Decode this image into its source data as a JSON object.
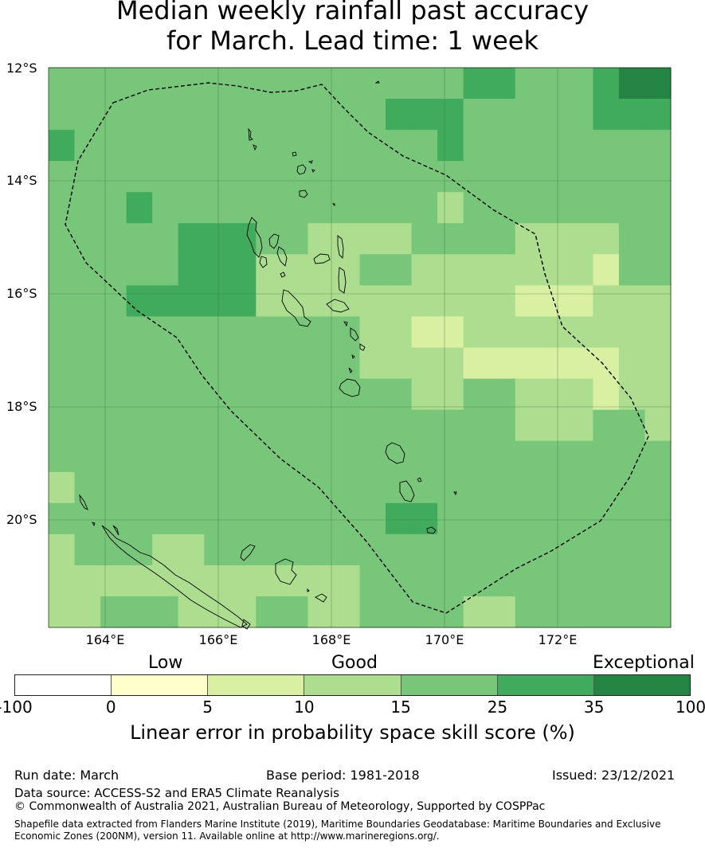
{
  "title": {
    "line1": "Median weekly rainfall past accuracy",
    "line2": "for March. Lead time: 1 week"
  },
  "map": {
    "lat_labels": [
      "12°S",
      "14°S",
      "16°S",
      "18°S",
      "20°S"
    ],
    "lon_labels": [
      "164°E",
      "166°E",
      "168°E",
      "170°E",
      "172°E"
    ],
    "lon_range": [
      163.0,
      174.0
    ],
    "lat_range": [
      -21.9,
      -12.0
    ],
    "grid_cell_size_deg": 0.84,
    "grid_levels_legend": "0=0-5,1=5-10,2=10-15,3=15-25,4=25-35,5=35-100",
    "grid": [
      [
        3,
        3,
        3,
        3,
        3,
        3,
        3,
        3,
        3,
        3,
        3,
        3,
        3,
        3,
        3,
        3,
        4,
        4,
        3,
        3,
        3,
        4,
        5,
        5
      ],
      [
        3,
        3,
        3,
        3,
        3,
        3,
        3,
        3,
        3,
        3,
        3,
        3,
        3,
        4,
        4,
        4,
        3,
        3,
        3,
        3,
        3,
        4,
        4,
        4
      ],
      [
        4,
        3,
        3,
        3,
        3,
        3,
        3,
        3,
        3,
        3,
        3,
        3,
        3,
        3,
        3,
        4,
        3,
        3,
        3,
        3,
        3,
        3,
        3,
        3
      ],
      [
        3,
        3,
        3,
        3,
        3,
        3,
        3,
        3,
        3,
        3,
        3,
        3,
        3,
        3,
        3,
        3,
        3,
        3,
        3,
        3,
        3,
        3,
        3,
        3
      ],
      [
        3,
        3,
        3,
        4,
        3,
        3,
        3,
        3,
        3,
        3,
        3,
        3,
        3,
        3,
        3,
        2,
        3,
        3,
        3,
        3,
        3,
        3,
        3,
        3
      ],
      [
        3,
        3,
        3,
        3,
        3,
        4,
        4,
        4,
        3,
        3,
        2,
        2,
        2,
        2,
        3,
        3,
        3,
        3,
        2,
        2,
        2,
        2,
        3,
        3
      ],
      [
        3,
        3,
        3,
        3,
        3,
        4,
        4,
        4,
        2,
        2,
        2,
        2,
        3,
        3,
        2,
        2,
        2,
        2,
        2,
        2,
        2,
        1,
        3,
        3
      ],
      [
        3,
        3,
        3,
        4,
        4,
        4,
        4,
        4,
        2,
        2,
        2,
        2,
        2,
        2,
        2,
        2,
        2,
        2,
        1,
        1,
        1,
        2,
        2,
        2
      ],
      [
        3,
        3,
        3,
        3,
        3,
        3,
        3,
        3,
        3,
        3,
        3,
        3,
        2,
        2,
        1,
        1,
        2,
        2,
        2,
        2,
        2,
        2,
        2,
        2
      ],
      [
        3,
        3,
        3,
        3,
        3,
        3,
        3,
        3,
        3,
        3,
        3,
        3,
        2,
        2,
        2,
        2,
        1,
        1,
        1,
        1,
        1,
        1,
        2,
        2
      ],
      [
        3,
        3,
        3,
        3,
        3,
        3,
        3,
        3,
        3,
        3,
        3,
        3,
        3,
        3,
        2,
        2,
        3,
        3,
        2,
        2,
        2,
        1,
        2,
        2
      ],
      [
        3,
        3,
        3,
        3,
        3,
        3,
        3,
        3,
        3,
        3,
        3,
        3,
        3,
        3,
        3,
        3,
        3,
        3,
        2,
        2,
        2,
        3,
        3,
        2
      ],
      [
        3,
        3,
        3,
        3,
        3,
        3,
        3,
        3,
        3,
        3,
        3,
        3,
        3,
        3,
        3,
        3,
        3,
        3,
        3,
        3,
        3,
        3,
        3,
        3
      ],
      [
        2,
        3,
        3,
        3,
        3,
        3,
        3,
        3,
        3,
        3,
        3,
        3,
        3,
        3,
        3,
        3,
        3,
        3,
        3,
        3,
        3,
        3,
        3,
        3
      ],
      [
        3,
        3,
        3,
        3,
        3,
        3,
        3,
        3,
        3,
        3,
        3,
        3,
        3,
        4,
        4,
        3,
        3,
        3,
        3,
        3,
        3,
        3,
        3,
        3
      ],
      [
        2,
        3,
        3,
        3,
        2,
        2,
        3,
        3,
        3,
        3,
        3,
        3,
        3,
        3,
        3,
        3,
        3,
        3,
        3,
        3,
        3,
        3,
        3,
        3
      ],
      [
        2,
        2,
        2,
        2,
        2,
        2,
        2,
        2,
        2,
        2,
        2,
        2,
        3,
        3,
        3,
        3,
        3,
        3,
        3,
        3,
        3,
        3,
        3,
        3
      ],
      [
        2,
        2,
        3,
        3,
        3,
        2,
        2,
        2,
        3,
        3,
        2,
        2,
        3,
        3,
        3,
        3,
        2,
        2,
        3,
        3,
        3,
        3,
        3,
        3
      ]
    ],
    "eez_boundary_style": "dashed black line"
  },
  "legend": {
    "category_low": "Low",
    "category_good": "Good",
    "category_exceptional": "Exceptional",
    "ticks": [
      "-100",
      "0",
      "5",
      "10",
      "15",
      "25",
      "35",
      "100"
    ],
    "bins": [
      {
        "from": "-100",
        "to": "0",
        "color": "#ffffff"
      },
      {
        "from": "0",
        "to": "5",
        "color": "#ffffcc"
      },
      {
        "from": "5",
        "to": "10",
        "color": "#d9f0a3"
      },
      {
        "from": "10",
        "to": "15",
        "color": "#addd8e"
      },
      {
        "from": "15",
        "to": "25",
        "color": "#78c679"
      },
      {
        "from": "25",
        "to": "35",
        "color": "#41ab5d"
      },
      {
        "from": "35",
        "to": "100",
        "color": "#238443"
      }
    ],
    "label": "Linear error in probability space skill score (%)"
  },
  "footer": {
    "run_date": "Run date: March",
    "base_period": "Base period: 1981-2018",
    "issued": "Issued: 23/12/2021",
    "data_source": "Data source: ACCESS-S2 and ERA5 Climate Reanalysis",
    "copyright": "© Commonwealth of Australia 2021, Australian Bureau of Meteorology, Supported by COSPPac",
    "shapefile_line1": "Shapefile data extracted from Flanders Marine Institute (2019), Maritime Boundaries Geodatabase: Maritime Boundaries and Exclusive",
    "shapefile_line2": "Economic Zones (200NM), version 11. Available online at http://www.marineregions.org/."
  }
}
